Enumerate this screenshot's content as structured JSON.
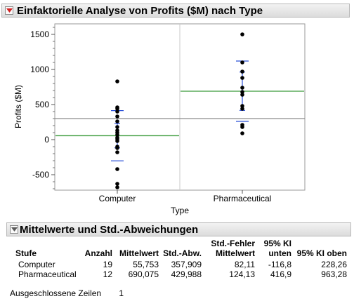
{
  "header": {
    "title": "Einfaktorielle Analyse von Profits ($M) nach Type"
  },
  "chart_data": {
    "type": "scatter",
    "ylabel": "Profits ($M)",
    "xlabel": "Type",
    "ylim": [
      -720,
      1650
    ],
    "yticks": [
      -500,
      0,
      500,
      1000,
      1500
    ],
    "categories": [
      "Computer",
      "Pharmaceutical"
    ],
    "grand_mean": 300,
    "series": [
      {
        "category": "Computer",
        "values": [
          830,
          460,
          440,
          400,
          330,
          260,
          180,
          130,
          100,
          70,
          30,
          10,
          -20,
          -100,
          -120,
          -180,
          -420,
          -630,
          -680
        ],
        "mean": 55.753,
        "ci": [
          -116.8,
          228.26
        ],
        "sd_bounds": [
          -302.156,
          413.662
        ]
      },
      {
        "category": "Pharmaceutical",
        "values": [
          1500,
          1100,
          970,
          880,
          740,
          680,
          640,
          480,
          440,
          210,
          180,
          90
        ],
        "mean": 690.075,
        "ci": [
          416.9,
          963.28
        ],
        "sd_bounds": [
          260.087,
          1120.063
        ]
      }
    ],
    "colors": {
      "mean_line": "#3a9a3a",
      "grand_mean_line": "#8c8c8c",
      "error_bars": "#2b50d8",
      "points": "#000000"
    },
    "grid": false
  },
  "summary": {
    "title": "Mittelwerte und Std.-Abweichungen",
    "headers": {
      "level": "Stufe",
      "count": "Anzahl",
      "mean": "Mittelwert",
      "sd": "Std.-Abw.",
      "se_line1": "Std.-Fehler",
      "se_line2": "Mittelwert",
      "ci_low_line1": "95% KI",
      "ci_low_line2": "unten",
      "ci_high": "95% KI oben"
    },
    "rows": [
      {
        "level": "Computer",
        "count": "19",
        "mean": "55,753",
        "sd": "357,909",
        "se": "82,11",
        "ci_low": "-116,8",
        "ci_high": "228,26"
      },
      {
        "level": "Pharmaceutical",
        "count": "12",
        "mean": "690,075",
        "sd": "429,988",
        "se": "124,13",
        "ci_low": "416,9",
        "ci_high": "963,28"
      }
    ]
  },
  "excluded": {
    "label": "Ausgeschlossene Zeilen",
    "value": "1"
  }
}
